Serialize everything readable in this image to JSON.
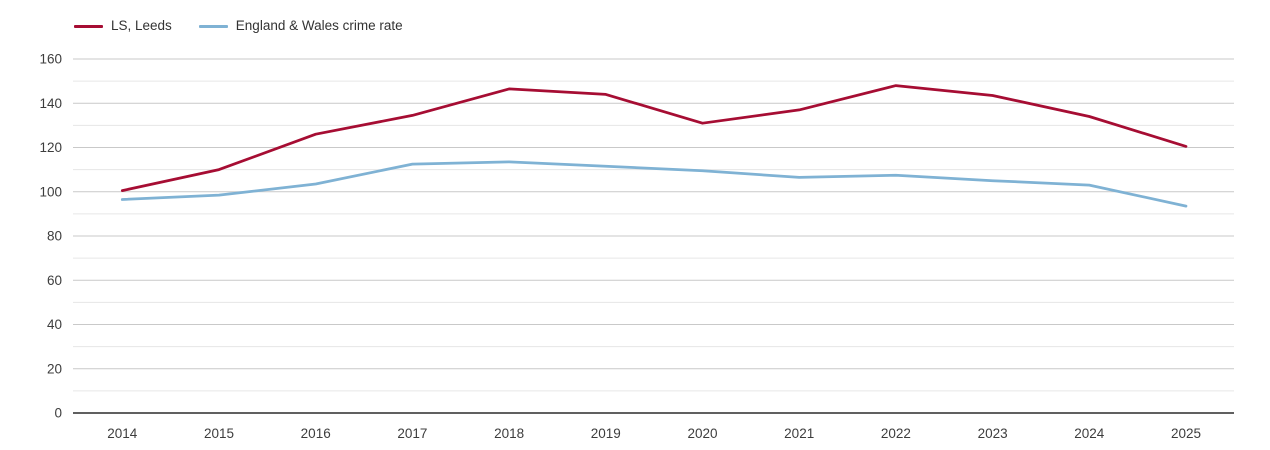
{
  "chart_data": {
    "type": "line",
    "title": "",
    "xlabel": "",
    "ylabel": "",
    "x_categories": [
      "2014",
      "2015",
      "2016",
      "2017",
      "2018",
      "2019",
      "2020",
      "2021",
      "2022",
      "2023",
      "2024",
      "2025"
    ],
    "y_tick_labels": [
      "0",
      "20",
      "40",
      "60",
      "80",
      "100",
      "120",
      "140",
      "160"
    ],
    "ylim": [
      0,
      160
    ],
    "y_major_step": 20,
    "y_minor_step": 10,
    "grid": "horizontal",
    "legend_position": "top-left",
    "series": [
      {
        "name": "LS, Leeds",
        "color": "#a60d33",
        "values": [
          100.5,
          110,
          126,
          134.5,
          146.5,
          144,
          131,
          137,
          148,
          143.5,
          134,
          120.5
        ]
      },
      {
        "name": "England & Wales crime rate",
        "color": "#7fb2d4",
        "values": [
          96.5,
          98.5,
          103.5,
          112.5,
          113.5,
          111.5,
          109.5,
          106.5,
          107.5,
          105,
          103,
          93.5
        ]
      }
    ],
    "style": {
      "grid_major_color": "#c9c9c9",
      "grid_minor_color": "#e6e6e6",
      "baseline_color": "#2b2b2b",
      "tick_text_color": "#3d3d3d",
      "line_width": 2.75
    }
  }
}
